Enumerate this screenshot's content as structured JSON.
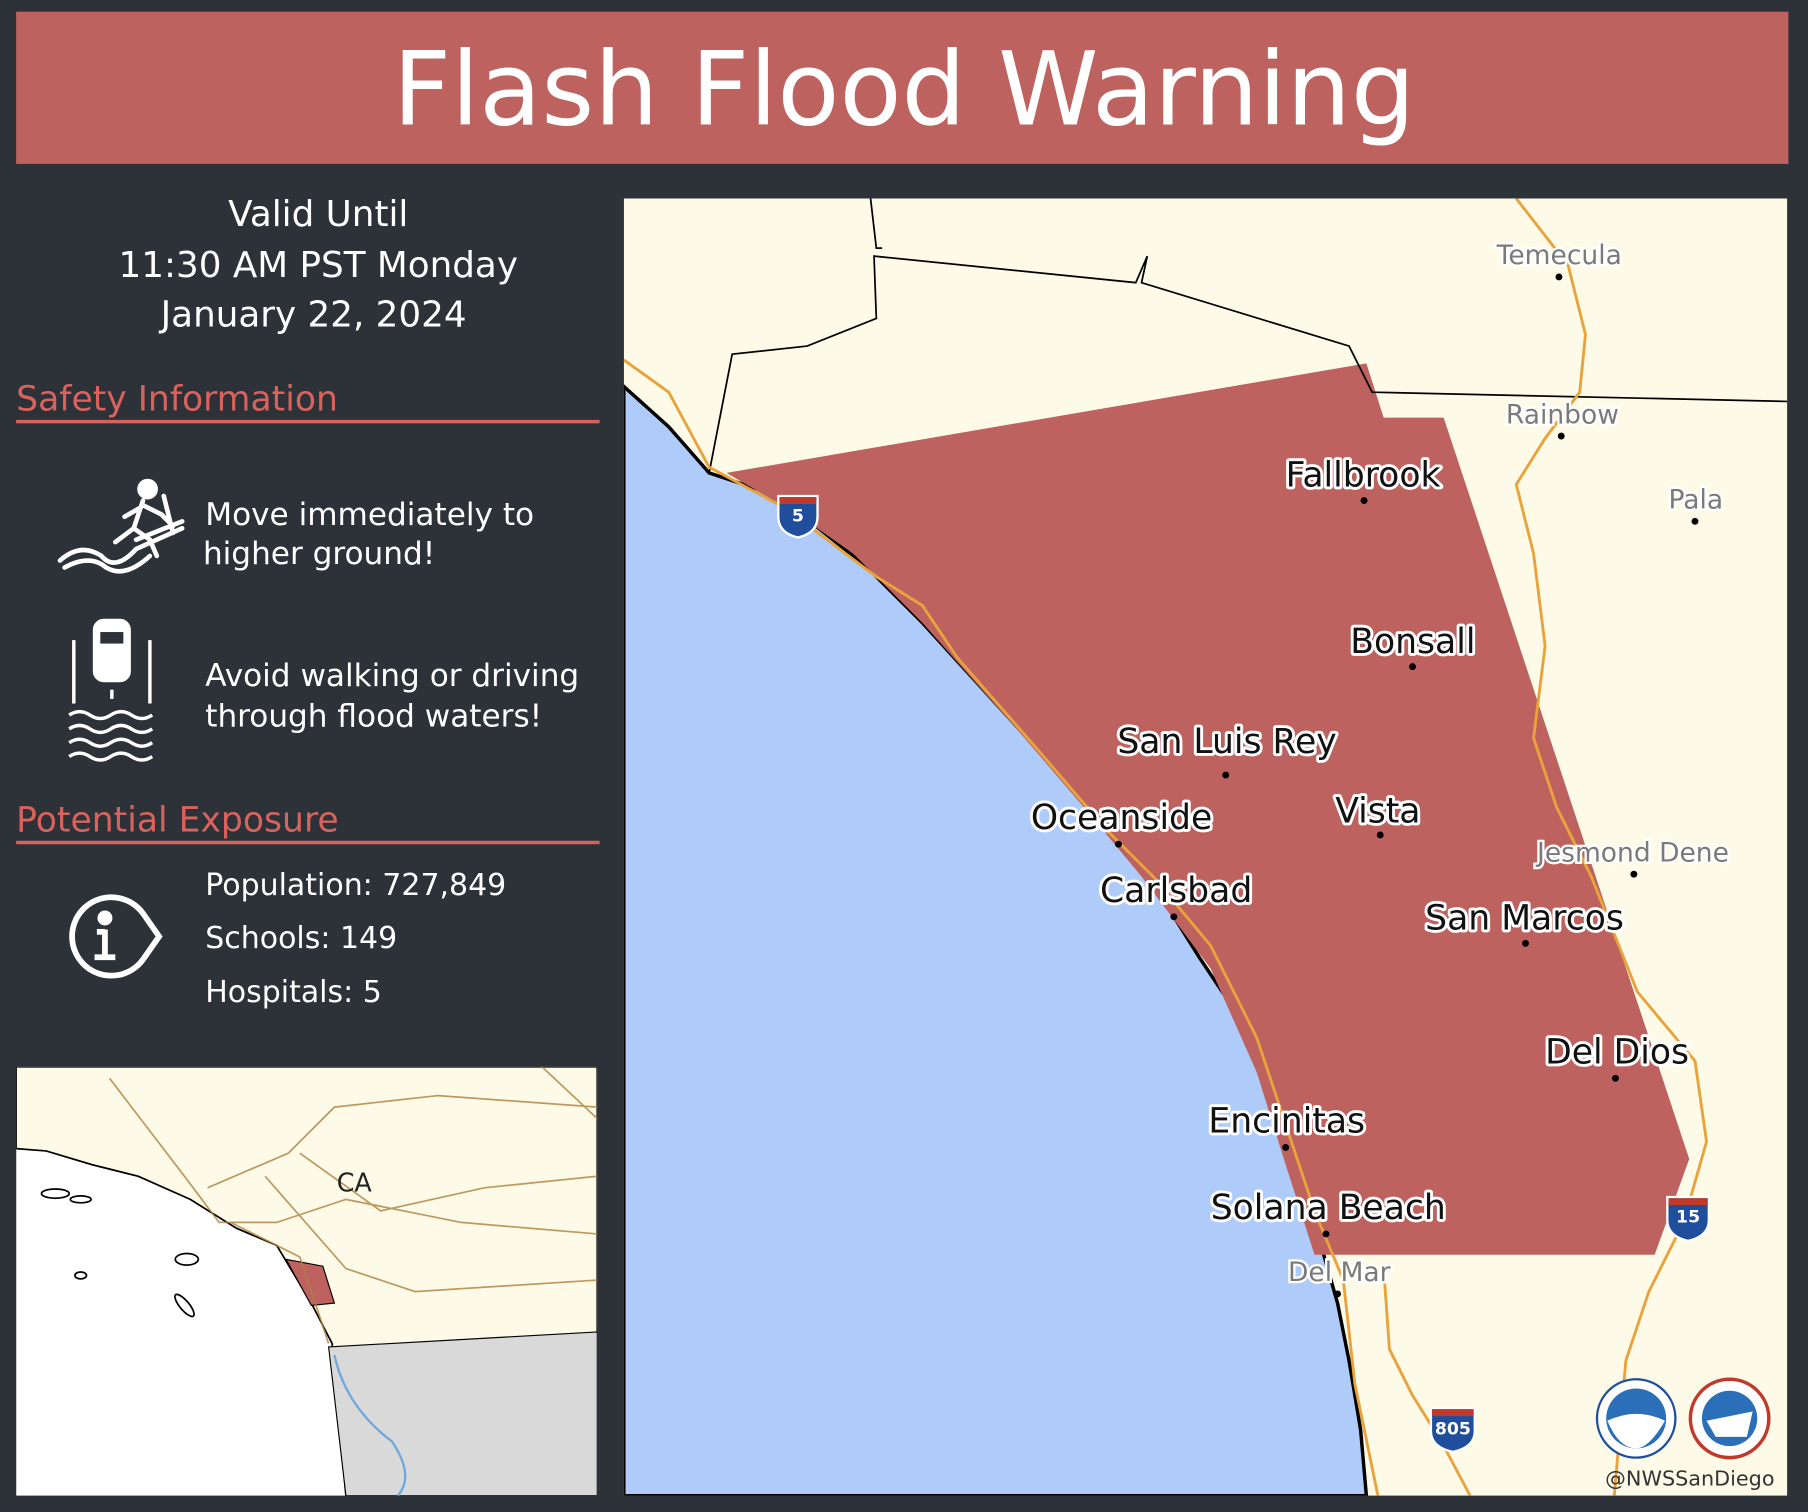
{
  "header": {
    "title": "Flash Flood Warning"
  },
  "valid_until": [
    "Valid Until",
    "11:30 AM PST Monday",
    "January 22, 2024"
  ],
  "safety": {
    "heading": "Safety Information",
    "items": [
      [
        "Move immediately to",
        "higher ground!"
      ],
      [
        "Avoid walking or driving",
        "through flood waters!"
      ]
    ]
  },
  "exposure": {
    "heading": "Potential Exposure",
    "items": [
      "Population: 727,849",
      "Schools: 149",
      "Hospitals: 5"
    ]
  },
  "inset": {
    "label": "CA"
  },
  "map": {
    "warning_places": [
      "Fallbrook",
      "Bonsall",
      "San Luis Rey",
      "Oceanside",
      "Vista",
      "Carlsbad",
      "San Marcos",
      "Del Dios",
      "Encinitas",
      "Solana Beach"
    ],
    "other_places": [
      "Temecula",
      "Rainbow",
      "Pala",
      "Jesmond Dene",
      "Del Mar"
    ],
    "shields": [
      "5",
      "15",
      "805"
    ],
    "credit": "@NWSSanDiego"
  }
}
